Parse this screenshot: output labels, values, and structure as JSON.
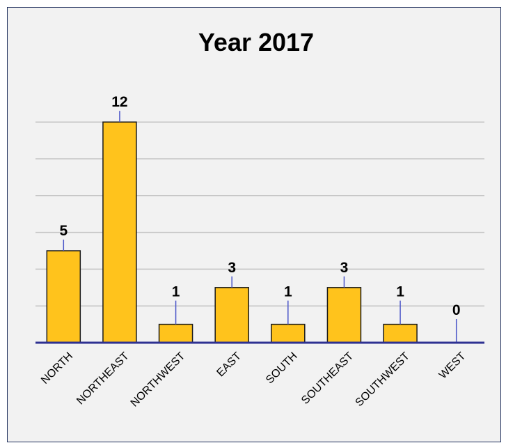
{
  "chart_data": {
    "type": "bar",
    "title": "Year 2017",
    "categories": [
      "NORTH",
      "NORTHEAST",
      "NORTHWEST",
      "EAST",
      "SOUTH",
      "SOUTHEAST",
      "SOUTHWEST",
      "WEST"
    ],
    "values": [
      5,
      12,
      1,
      3,
      1,
      3,
      1,
      0
    ],
    "data_labels": [
      "5",
      "12",
      "1",
      "3",
      "1",
      "3",
      "1",
      "0"
    ],
    "xlabel": "",
    "ylabel": "",
    "ylim": [
      0,
      12
    ],
    "grid": true,
    "legend": "none",
    "colors": {
      "bar_fill": "#ffc31c",
      "bar_stroke": "#1a1a1a",
      "axis": "#2e3192",
      "leader_line": "#4a55c8",
      "gridline": "#c4c4c4",
      "background": "#f2f2f2",
      "frame": "#1f2f5c"
    }
  }
}
